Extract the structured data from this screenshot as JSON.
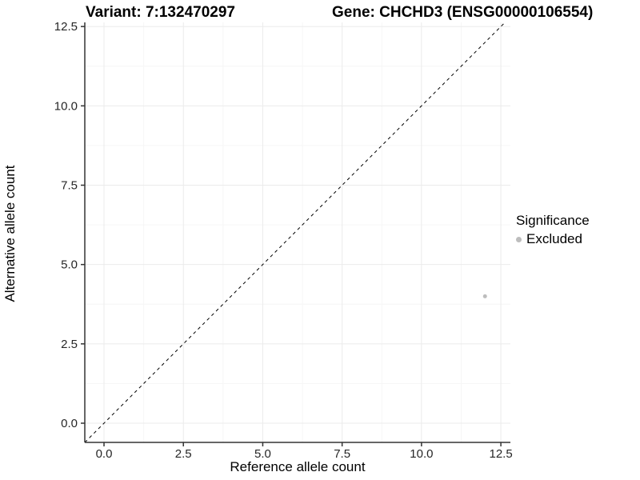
{
  "chart_data": {
    "type": "scatter",
    "title_variant": "Variant: 7:132470297",
    "title_gene": "Gene: CHCHD3 (ENSG00000106554)",
    "xlabel": "Reference allele count",
    "ylabel": "Alternative allele count",
    "xlim": [
      -0.605,
      12.8
    ],
    "ylim": [
      -0.605,
      12.63
    ],
    "x_ticks": {
      "values": [
        0,
        2.5,
        5,
        7.5,
        10,
        12.5
      ],
      "labels": [
        "0.0",
        "2.5",
        "5.0",
        "7.5",
        "10.0",
        "12.5"
      ]
    },
    "y_ticks": {
      "values": [
        0,
        2.5,
        5,
        7.5,
        10,
        12.5
      ],
      "labels": [
        "0.0",
        "2.5",
        "5.0",
        "7.5",
        "10.0",
        "12.5"
      ]
    },
    "x_minor_ticks": [
      1.25,
      3.75,
      6.25,
      8.75,
      11.25
    ],
    "y_minor_ticks": [
      1.25,
      3.75,
      6.25,
      8.75,
      11.25
    ],
    "grid": true,
    "identity_line": {
      "slope": 1,
      "intercept": 0,
      "style": "dashed",
      "color": "#000000"
    },
    "series": [
      {
        "name": "Excluded",
        "color": "#bdbdbd",
        "point_radius": 2.5,
        "points": [
          {
            "x": 12,
            "y": 4
          }
        ]
      }
    ],
    "legend": {
      "title": "Significance",
      "position": "right",
      "items": [
        {
          "label": "Excluded",
          "color": "#bdbdbd"
        }
      ]
    },
    "colors": {
      "background": "#ffffff",
      "grid_major": "#ebebeb",
      "grid_minor": "#f6f6f6",
      "axis_line": "#333333",
      "tick_label": "#262626"
    }
  }
}
